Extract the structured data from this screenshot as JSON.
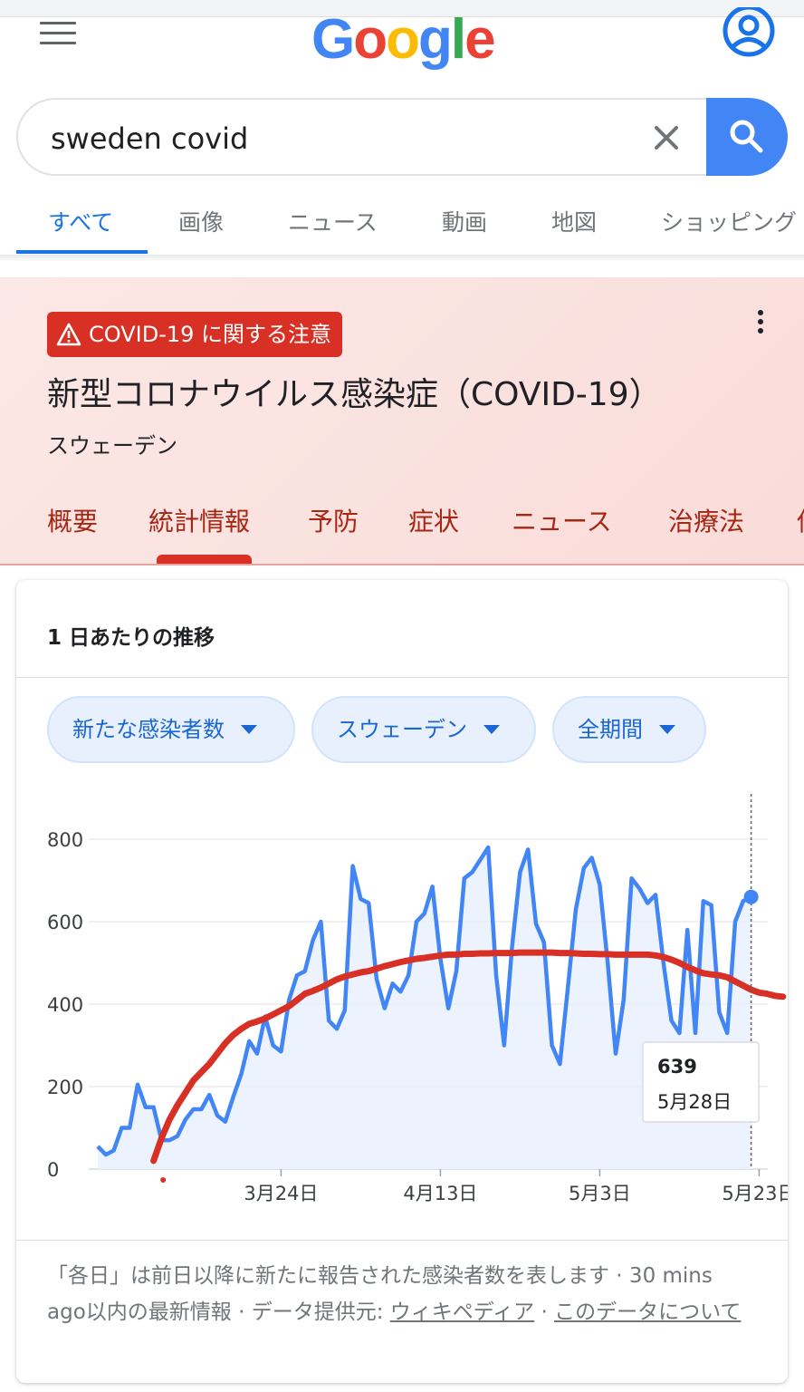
{
  "header": {
    "logo": [
      "G",
      "o",
      "o",
      "g",
      "l",
      "e"
    ],
    "menu_icon": "hamburger-menu-icon",
    "account_icon": "account-circle-icon"
  },
  "search": {
    "query": "sweden covid",
    "clear_icon": "close-icon",
    "submit_icon": "search-icon"
  },
  "tabs": [
    {
      "label": "すべて",
      "active": true
    },
    {
      "label": "画像"
    },
    {
      "label": "ニュース"
    },
    {
      "label": "動画"
    },
    {
      "label": "地図"
    },
    {
      "label": "ショッピング"
    }
  ],
  "covid_panel": {
    "alert_label": "COVID-19 に関する注意",
    "title": "新型コロナウイルス感染症（COVID-19）",
    "subtitle": "スウェーデン",
    "tabs": [
      "概要",
      "統計情報",
      "予防",
      "症状",
      "ニュース",
      "治療法",
      "他"
    ],
    "active_tab": "統計情報"
  },
  "card": {
    "title": "1 日あたりの推移",
    "chips": [
      "新たな感染者数",
      "スウェーデン",
      "全期間"
    ],
    "tooltip": {
      "value": "639",
      "date": "5月28日"
    },
    "footnote": {
      "text1": "「各日」は前日以降に新たに報告された感染者数を表します · 30 mins ago以内の最新情報 · データ提供元: ",
      "source_link": "ウィキペディア",
      "sep": " · ",
      "about_link": "このデータについて"
    }
  },
  "chart_data": {
    "type": "line",
    "ylim": [
      0,
      800
    ],
    "y_ticks": [
      0,
      200,
      400,
      600,
      800
    ],
    "x_ticks": [
      "3月24日",
      "4月13日",
      "5月3日",
      "5月23日"
    ],
    "x_tick_day_index": [
      23,
      43,
      63,
      83
    ],
    "series": [
      {
        "values": [
          55,
          35,
          45,
          100,
          100,
          205,
          150,
          150,
          70,
          70,
          80,
          120,
          145,
          145,
          180,
          130,
          115,
          175,
          230,
          310,
          280,
          370,
          300,
          285,
          410,
          470,
          480,
          555,
          600,
          360,
          340,
          385,
          735,
          655,
          645,
          460,
          390,
          450,
          430,
          470,
          600,
          620,
          685,
          510,
          390,
          480,
          705,
          720,
          750,
          780,
          470,
          300,
          540,
          720,
          775,
          595,
          550,
          300,
          255,
          440,
          630,
          730,
          755,
          690,
          500,
          280,
          410,
          705,
          680,
          645,
          665,
          500,
          360,
          330,
          580,
          330,
          650,
          640,
          380,
          330,
          600,
          650,
          660
        ],
        "color": "#4285f4"
      },
      {
        "values": [
          20,
          75,
          120,
          155,
          185,
          215,
          235,
          255,
          280,
          305,
          325,
          340,
          352,
          358,
          365,
          375,
          385,
          395,
          410,
          425,
          432,
          440,
          450,
          460,
          467,
          472,
          477,
          480,
          486,
          492,
          497,
          502,
          506,
          510,
          512,
          515,
          518,
          520,
          520,
          522,
          522,
          523,
          523,
          524,
          524,
          524,
          525,
          525,
          525,
          525,
          525,
          524,
          524,
          523,
          522,
          522,
          521,
          521,
          520,
          520,
          520,
          520,
          520,
          518,
          514,
          508,
          500,
          490,
          482,
          475,
          472,
          470,
          465,
          455,
          445,
          435,
          428,
          425,
          420,
          418
        ],
        "color": "#d93025"
      }
    ],
    "grid": true
  }
}
